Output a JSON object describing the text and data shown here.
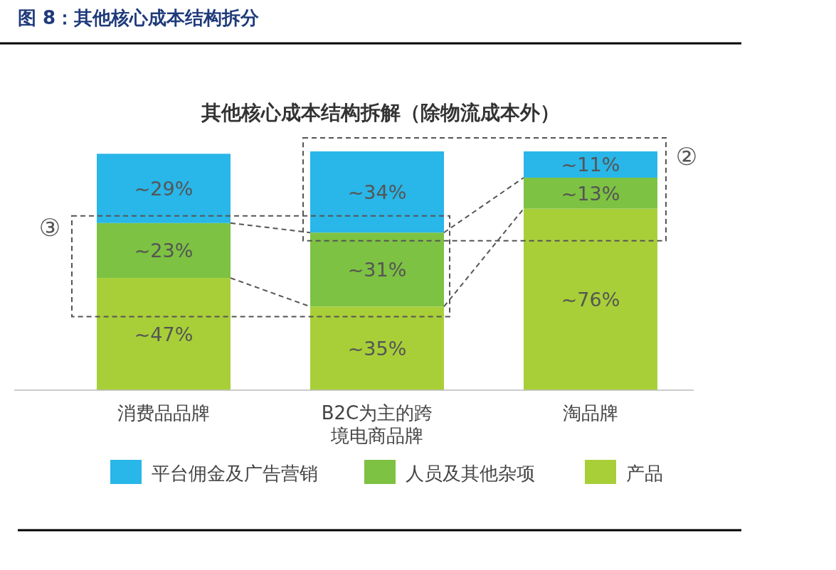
{
  "chart_data": {
    "type": "bar",
    "stacked": true,
    "title": "图 8：其他核心成本结构拆分",
    "subtitle": "其他核心成本结构拆解（除物流成本外）",
    "categories": [
      "消费品品牌",
      "B2C为主的跨境电商品牌",
      "淘品牌"
    ],
    "series": [
      {
        "name": "产品",
        "color": "#a8cf38",
        "values": [
          47,
          35,
          76
        ],
        "value_labels": [
          "~47%",
          "~35%",
          "~76%"
        ]
      },
      {
        "name": "人员及其他杂项",
        "color": "#7dc242",
        "values": [
          23,
          31,
          13
        ],
        "value_labels": [
          "~23%",
          "~31%",
          "~13%"
        ]
      },
      {
        "name": "平台佣金及广告营销",
        "color": "#29b6e8",
        "values": [
          29,
          34,
          11
        ],
        "value_labels": [
          "~29%",
          "~34%",
          "~11%"
        ]
      }
    ],
    "annotations": [
      "②",
      "③"
    ],
    "legend": "bottom"
  }
}
